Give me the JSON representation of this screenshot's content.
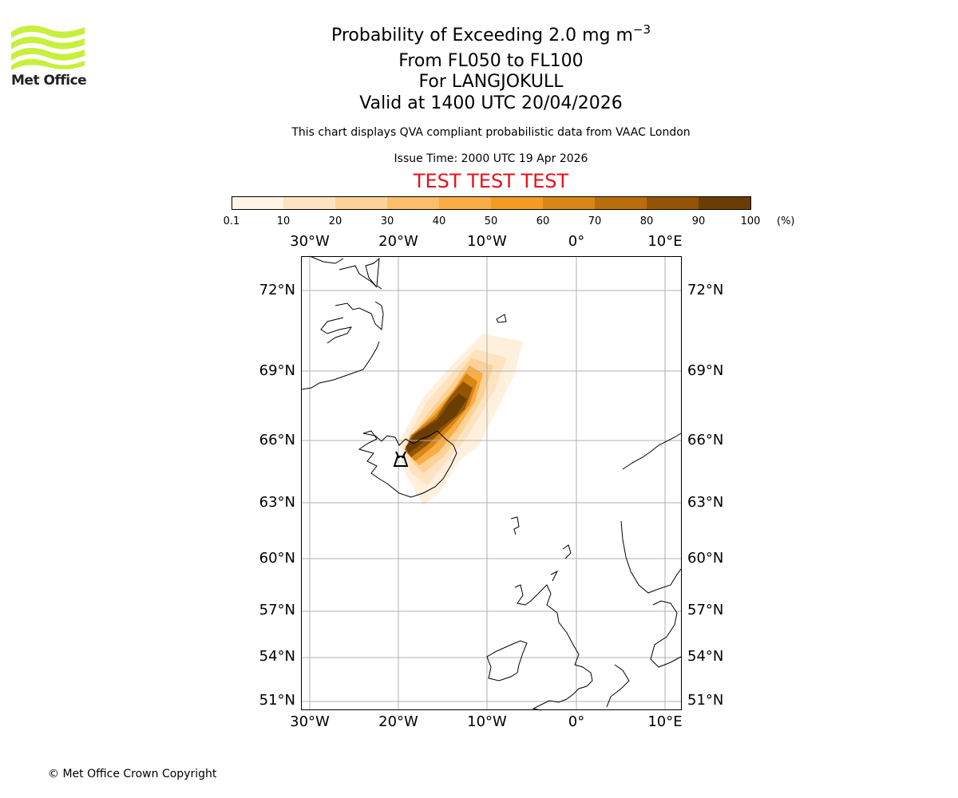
{
  "header": {
    "logo_text": "Met Office",
    "title_prefix": "Probability of Exceeding 2.0 mg m",
    "title_exp": "−3",
    "line2": "From FL050 to FL100",
    "line3": "For LANGJOKULL",
    "line4": "Valid at 1400 UTC 20/04/2026",
    "subtitle": "This chart displays QVA compliant probabilistic data from VAAC London",
    "issue_time": "Issue Time: 2000 UTC 19 Apr 2026",
    "test_banner": "TEST TEST TEST"
  },
  "colorbar": {
    "tick_labels": [
      "0.1",
      "10",
      "20",
      "30",
      "40",
      "50",
      "60",
      "70",
      "80",
      "90",
      "100"
    ],
    "unit": "(%)",
    "colors": [
      "#fff5e6",
      "#fde3c0",
      "#fdd299",
      "#fbbf6b",
      "#f9ad44",
      "#f59b21",
      "#d98614",
      "#b96e0b",
      "#935505",
      "#6b3d04"
    ]
  },
  "map": {
    "lon_labels": [
      "30°W",
      "20°W",
      "10°W",
      "0°",
      "10°E"
    ],
    "lat_labels": [
      "72°N",
      "69°N",
      "66°N",
      "63°N",
      "60°N",
      "57°N",
      "54°N",
      "51°N"
    ]
  },
  "footer": {
    "copyright": "© Met Office Crown Copyright"
  }
}
